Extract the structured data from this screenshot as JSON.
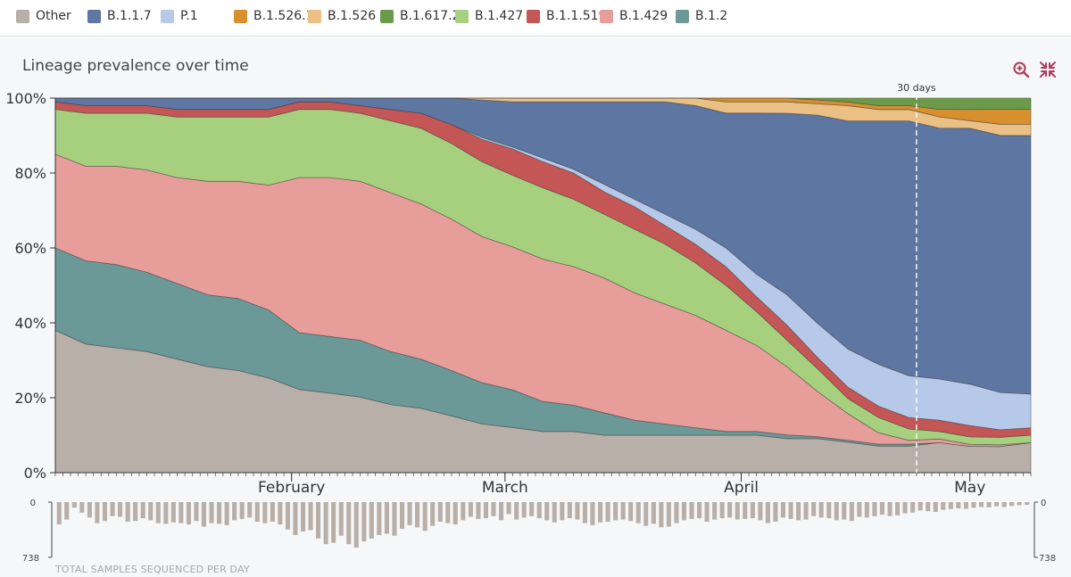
{
  "legend": [
    {
      "name": "Other",
      "color": "#b8afa9"
    },
    {
      "name": "B.1.1.7",
      "color": "#5e76a2"
    },
    {
      "name": "P.1",
      "color": "#b7c9e8"
    },
    {
      "name": "B.1.526.1",
      "color": "#d8902f"
    },
    {
      "name": "B.1.526",
      "color": "#eac085"
    },
    {
      "name": "B.1.617.2",
      "color": "#6b9b4a"
    },
    {
      "name": "B.1.427",
      "color": "#a6d07e"
    },
    {
      "name": "B.1.1.519",
      "color": "#c45656"
    },
    {
      "name": "B.1.429",
      "color": "#e79e9a"
    },
    {
      "name": "B.1.2",
      "color": "#6b9997"
    }
  ],
  "chart_title": "Lineage prevalence over time",
  "icons": {
    "zoom": "zoom-in-icon",
    "collapse": "collapse-icon"
  },
  "marker_label": "30 days",
  "counts_caption": "TOTAL SAMPLES SEQUENCED PER DAY",
  "counts_axis": {
    "top": "0",
    "bottom": "738",
    "right_top": "0",
    "right_bottom": "738"
  },
  "chart_data": {
    "type": "area",
    "stacked": true,
    "normalized": true,
    "x_range_days": [
      0,
      128
    ],
    "x_ticks": [
      {
        "day": 31,
        "label": "February"
      },
      {
        "day": 59,
        "label": "March"
      },
      {
        "day": 90,
        "label": "April"
      },
      {
        "day": 120,
        "label": "May"
      }
    ],
    "y_ticks": [
      "0%",
      "20%",
      "40%",
      "60%",
      "80%",
      "100%"
    ],
    "ylim": [
      0,
      100
    ],
    "marker_day": 113,
    "x": [
      0,
      4,
      8,
      12,
      16,
      20,
      24,
      28,
      32,
      36,
      40,
      44,
      48,
      52,
      56,
      60,
      64,
      68,
      72,
      76,
      80,
      84,
      88,
      92,
      96,
      100,
      104,
      108,
      112,
      116,
      120,
      124,
      128
    ],
    "series": [
      {
        "name": "Other",
        "values": [
          38,
          34,
          33,
          32,
          30,
          28,
          27,
          25,
          22,
          21,
          20,
          18,
          17,
          15,
          13,
          12,
          11,
          11,
          10,
          10,
          10,
          10,
          10,
          10,
          9,
          9,
          8,
          7,
          7,
          8,
          7,
          7,
          8
        ]
      },
      {
        "name": "B.1.2",
        "values": [
          22,
          22,
          22,
          21,
          20,
          19,
          19,
          18,
          15,
          15,
          15,
          14,
          13,
          12,
          11,
          10,
          8,
          7,
          6,
          4,
          3,
          2,
          1,
          1,
          1,
          0.5,
          0.5,
          0.5,
          0.5,
          0,
          0,
          0,
          0
        ]
      },
      {
        "name": "B.1.429",
        "values": [
          25,
          25,
          26,
          27,
          28,
          30,
          31,
          33,
          41,
          42,
          42,
          42,
          41,
          40,
          39,
          38,
          38,
          37,
          36,
          34,
          32,
          30,
          27,
          23,
          18,
          12,
          7,
          3,
          1,
          1,
          0.5,
          0.5,
          0
        ]
      },
      {
        "name": "B.1.427",
        "values": [
          12,
          14,
          14,
          15,
          16,
          17,
          17,
          18,
          18,
          18,
          18,
          19,
          20,
          20,
          20,
          19,
          19,
          18,
          17,
          17,
          16,
          14,
          12,
          9,
          7,
          6,
          4,
          4,
          3,
          2,
          2,
          2,
          2
        ]
      },
      {
        "name": "B.1.1.519",
        "values": [
          2,
          2,
          2,
          2,
          2,
          2,
          2,
          2,
          2,
          2,
          2,
          3,
          4,
          5,
          6,
          7,
          7,
          7,
          6,
          6,
          5,
          5,
          5,
          4,
          4,
          3,
          3,
          3,
          3,
          3,
          3,
          2,
          2
        ]
      },
      {
        "name": "P.1",
        "values": [
          0,
          0,
          0,
          0,
          0,
          0,
          0,
          0,
          0,
          0,
          0,
          0,
          0,
          0,
          0.5,
          0.5,
          1,
          1,
          2,
          2,
          3,
          4,
          5,
          6,
          8,
          9,
          10,
          11,
          11,
          11,
          11,
          10,
          9
        ]
      },
      {
        "name": "B.1.1.7",
        "values": [
          1,
          2,
          2,
          2,
          3,
          3,
          3,
          3,
          1,
          1,
          2,
          3,
          4,
          7,
          10,
          12,
          15,
          18,
          22,
          26,
          30,
          33,
          36,
          43,
          48,
          55,
          60,
          64,
          67,
          67,
          68,
          69,
          69
        ]
      },
      {
        "name": "B.1.526",
        "values": [
          0,
          0,
          0,
          0,
          0,
          0,
          0,
          0,
          0,
          0,
          0,
          0,
          0,
          0,
          0.5,
          1,
          1,
          1,
          1,
          1,
          1,
          2,
          3,
          3,
          3,
          3,
          4,
          3,
          3,
          3,
          2,
          3,
          3
        ]
      },
      {
        "name": "B.1.526.1",
        "values": [
          0,
          0,
          0,
          0,
          0,
          0,
          0,
          0,
          0,
          0,
          0,
          0,
          0,
          0,
          0,
          0,
          0,
          0,
          0,
          0,
          0,
          0,
          1,
          1,
          1,
          1,
          1,
          1,
          1,
          2,
          3,
          4,
          4
        ]
      },
      {
        "name": "B.1.617.2",
        "values": [
          0,
          0,
          0,
          0,
          0,
          0,
          0,
          0,
          0,
          0,
          0,
          0,
          0,
          0,
          0,
          0,
          0,
          0,
          0,
          0,
          0,
          0,
          0,
          0,
          0,
          0.5,
          1,
          2,
          2,
          3,
          3,
          3,
          3
        ]
      }
    ],
    "daily_counts_max": 738,
    "daily_counts": [
      320,
      250,
      80,
      150,
      220,
      300,
      270,
      200,
      210,
      280,
      270,
      230,
      260,
      300,
      310,
      290,
      300,
      320,
      270,
      350,
      300,
      310,
      330,
      260,
      240,
      220,
      280,
      300,
      280,
      320,
      390,
      470,
      420,
      400,
      520,
      600,
      580,
      480,
      600,
      650,
      560,
      520,
      470,
      450,
      480,
      380,
      330,
      360,
      410,
      340,
      280,
      300,
      320,
      260,
      210,
      240,
      230,
      200,
      260,
      170,
      250,
      220,
      200,
      230,
      260,
      290,
      260,
      230,
      250,
      300,
      330,
      290,
      280,
      260,
      250,
      270,
      300,
      340,
      310,
      360,
      350,
      300,
      260,
      240,
      230,
      280,
      250,
      230,
      220,
      250,
      240,
      230,
      260,
      300,
      280,
      220,
      240,
      260,
      250,
      200,
      220,
      230,
      260,
      250,
      270,
      210,
      220,
      200,
      180,
      200,
      190,
      160,
      150,
      120,
      130,
      140,
      110,
      100,
      90,
      95,
      80,
      70,
      75,
      60,
      70,
      55,
      45,
      40
    ]
  }
}
